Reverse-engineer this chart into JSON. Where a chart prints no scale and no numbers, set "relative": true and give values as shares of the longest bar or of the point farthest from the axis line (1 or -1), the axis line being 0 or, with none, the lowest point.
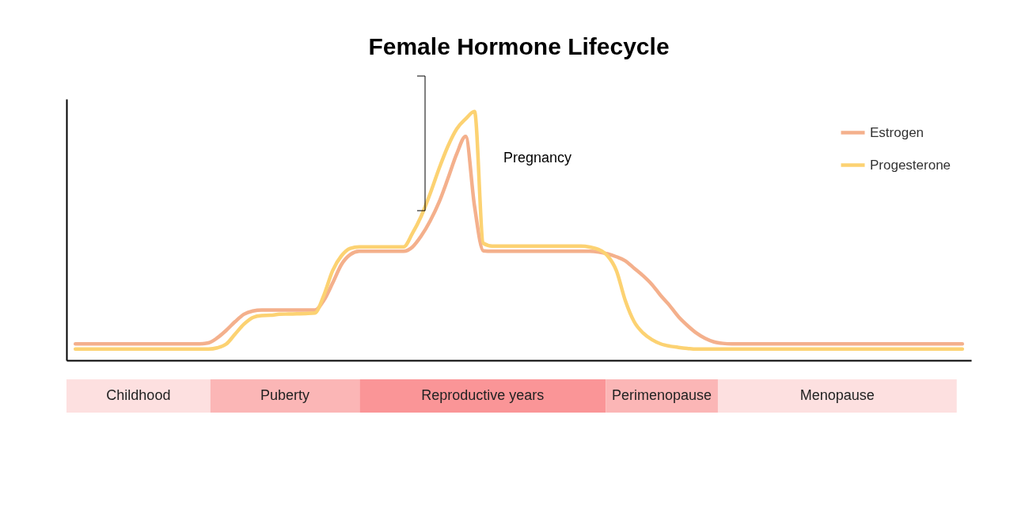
{
  "chart_data": [
    {
      "type": "line",
      "title": "Female Hormone Lifecycle",
      "relative": true,
      "legend": "top right",
      "line_style": "solid",
      "marker": "none",
      "categories": [
        null,
        null,
        null,
        null,
        null,
        null,
        null,
        null,
        null,
        null,
        null,
        null,
        null,
        null,
        null,
        null,
        null,
        null,
        null,
        null,
        null,
        null,
        null,
        null,
        null,
        null,
        null,
        null,
        null,
        null,
        null,
        null,
        null,
        null,
        null,
        null,
        null,
        null,
        null,
        null,
        null,
        null,
        null,
        null,
        null,
        null,
        null,
        null,
        null,
        null,
        null,
        null,
        null,
        null,
        null,
        null,
        null,
        null,
        null,
        null,
        null,
        null,
        null,
        null,
        null,
        null,
        null,
        null,
        null,
        null,
        null,
        null,
        null,
        null,
        null,
        null,
        null,
        null,
        null,
        null,
        null,
        null,
        null,
        null,
        null,
        null,
        null,
        null,
        null,
        null,
        null,
        null,
        null,
        null,
        null,
        null,
        null,
        null,
        null,
        null,
        null
      ],
      "series": [
        {
          "name": "Estrogen",
          "color": "#f4b08c",
          "values": [
            0.066,
            0.066,
            0.066,
            0.066,
            0.066,
            0.066,
            0.066,
            0.066,
            0.066,
            0.066,
            0.066,
            0.066,
            0.066,
            0.066,
            0.066,
            0.07,
            0.09,
            0.12,
            0.155,
            0.185,
            0.198,
            0.202,
            0.202,
            0.202,
            0.202,
            0.202,
            0.202,
            0.202,
            0.24,
            0.31,
            0.385,
            0.425,
            0.438,
            0.438,
            0.438,
            0.438,
            0.438,
            0.438,
            0.455,
            0.5,
            0.56,
            0.635,
            0.73,
            0.83,
            0.9,
            0.62,
            0.44,
            0.438,
            0.438,
            0.438,
            0.438,
            0.438,
            0.438,
            0.438,
            0.438,
            0.438,
            0.438,
            0.438,
            0.438,
            0.435,
            0.428,
            0.416,
            0.4,
            0.37,
            0.34,
            0.305,
            0.26,
            0.22,
            0.175,
            0.14,
            0.11,
            0.088,
            0.074,
            0.068,
            0.066,
            0.066,
            0.066,
            0.066,
            0.066,
            0.066,
            0.066,
            0.066,
            0.066,
            0.066,
            0.066,
            0.066,
            0.066,
            0.066,
            0.066,
            0.066,
            0.066,
            0.066,
            0.066,
            0.066,
            0.066,
            0.066,
            0.066,
            0.066,
            0.066,
            0.066,
            0.066
          ]
        },
        {
          "name": "Progesterone",
          "color": "#fcd272",
          "values": [
            0.045,
            0.045,
            0.045,
            0.045,
            0.045,
            0.045,
            0.045,
            0.045,
            0.045,
            0.045,
            0.045,
            0.045,
            0.045,
            0.045,
            0.045,
            0.045,
            0.05,
            0.065,
            0.105,
            0.145,
            0.172,
            0.18,
            0.181,
            0.185,
            0.186,
            0.187,
            0.188,
            0.19,
            0.26,
            0.36,
            0.42,
            0.45,
            0.456,
            0.456,
            0.456,
            0.456,
            0.456,
            0.456,
            0.51,
            0.58,
            0.67,
            0.77,
            0.86,
            0.93,
            0.97,
            1.0,
            0.47,
            0.459,
            0.459,
            0.459,
            0.459,
            0.459,
            0.459,
            0.459,
            0.459,
            0.459,
            0.459,
            0.459,
            0.455,
            0.445,
            0.42,
            0.36,
            0.24,
            0.155,
            0.11,
            0.083,
            0.066,
            0.057,
            0.052,
            0.048,
            0.045,
            0.045,
            0.045,
            0.045,
            0.045,
            0.045,
            0.045,
            0.045,
            0.045,
            0.045,
            0.045,
            0.045,
            0.045,
            0.045,
            0.045,
            0.045,
            0.045,
            0.045,
            0.045,
            0.045,
            0.045,
            0.045,
            0.045,
            0.045,
            0.045,
            0.045,
            0.045,
            0.045,
            0.045,
            0.045,
            0.045
          ]
        }
      ],
      "annotations": [
        "Pregnancy"
      ]
    },
    {
      "type": "other",
      "categories": [
        "Childhood",
        "Puberty",
        "Reproductive years",
        "Perimenopause",
        "Menopause"
      ],
      "colors": [
        "#fde0e0",
        "#fbb6b6",
        "#fa9597",
        "#fbb6b6",
        "#fde0e0"
      ]
    }
  ]
}
